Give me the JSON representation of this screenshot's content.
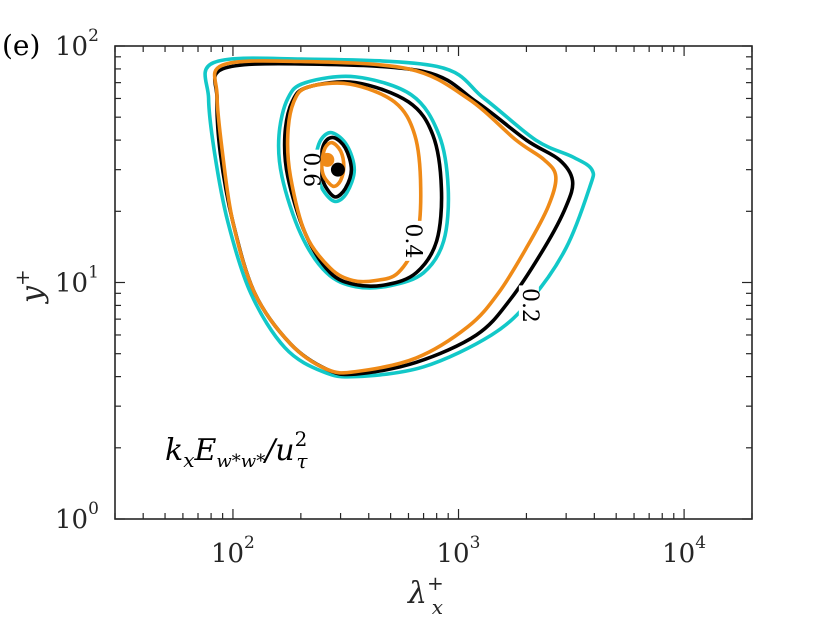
{
  "chart_data": {
    "type": "contour",
    "panel_label": "(e)",
    "xlabel": "λ",
    "xlabel_sup": "+",
    "xlabel_sub": "x",
    "ylabel": "y",
    "ylabel_sup": "+",
    "xscale": "log",
    "yscale": "log",
    "xlim": [
      30,
      20000
    ],
    "ylim": [
      1,
      100
    ],
    "x_ticks": [
      {
        "base": "10",
        "exp": "2",
        "value": 100
      },
      {
        "base": "10",
        "exp": "3",
        "value": 1000
      },
      {
        "base": "10",
        "exp": "4",
        "value": 10000
      }
    ],
    "y_ticks": [
      {
        "base": "10",
        "exp": "0",
        "value": 1
      },
      {
        "base": "10",
        "exp": "1",
        "value": 10
      },
      {
        "base": "10",
        "exp": "2",
        "value": 100
      }
    ],
    "annotation": {
      "text_main": "k",
      "sub1": "x",
      "text_E": "E",
      "sub2": "w*w*",
      "text_u": "/u",
      "sup3": "2",
      "sub3": "τ"
    },
    "contour_labels": [
      {
        "text": "0.6",
        "x": 220,
        "y": 30
      },
      {
        "text": "0.4",
        "x": 620,
        "y": 15
      },
      {
        "text": "0.2",
        "x": 2050,
        "y": 8
      }
    ],
    "series": [
      {
        "color": "#12c8c8",
        "levels": [
          {
            "level": 0.2,
            "points": [
              [
                78,
                60
              ],
              [
                82,
                85
              ],
              [
                200,
                88
              ],
              [
                800,
                82
              ],
              [
                1300,
                60
              ],
              [
                2200,
                40
              ],
              [
                3200,
                34
              ],
              [
                3900,
                30
              ],
              [
                3800,
                25
              ],
              [
                3000,
                14
              ],
              [
                2100,
                8.5
              ],
              [
                1400,
                6
              ],
              [
                700,
                4.4
              ],
              [
                350,
                4.0
              ],
              [
                250,
                4.2
              ],
              [
                170,
                5.3
              ],
              [
                120,
                9
              ],
              [
                95,
                18
              ],
              [
                83,
                35
              ],
              [
                78,
                60
              ]
            ]
          },
          {
            "level": 0.4,
            "points": [
              [
                160,
                42
              ],
              [
                175,
                60
              ],
              [
                210,
                70
              ],
              [
                350,
                74
              ],
              [
                620,
                62
              ],
              [
                820,
                42
              ],
              [
                900,
                25
              ],
              [
                860,
                15
              ],
              [
                700,
                11
              ],
              [
                500,
                9.7
              ],
              [
                350,
                9.6
              ],
              [
                260,
                11
              ],
              [
                200,
                16
              ],
              [
                165,
                28
              ],
              [
                160,
                42
              ]
            ]
          },
          {
            "level": 0.6,
            "points": [
              [
                232,
                33
              ],
              [
                245,
                40
              ],
              [
                275,
                43
              ],
              [
                320,
                38
              ],
              [
                345,
                30
              ],
              [
                320,
                24
              ],
              [
                285,
                22
              ],
              [
                255,
                24
              ],
              [
                237,
                28
              ],
              [
                232,
                33
              ]
            ]
          }
        ]
      },
      {
        "color": "#000000",
        "levels": [
          {
            "level": 0.2,
            "points": [
              [
                85,
                60
              ],
              [
                90,
                80
              ],
              [
                200,
                84
              ],
              [
                700,
                78
              ],
              [
                1200,
                58
              ],
              [
                2000,
                40
              ],
              [
                2800,
                33
              ],
              [
                3200,
                27
              ],
              [
                3000,
                21
              ],
              [
                2400,
                14
              ],
              [
                1700,
                8.5
              ],
              [
                1200,
                6
              ],
              [
                650,
                4.6
              ],
              [
                350,
                4.1
              ],
              [
                260,
                4.3
              ],
              [
                180,
                5.5
              ],
              [
                125,
                9
              ],
              [
                100,
                18
              ],
              [
                88,
                35
              ],
              [
                85,
                60
              ]
            ]
          },
          {
            "level": 0.4,
            "points": [
              [
                170,
                42
              ],
              [
                183,
                58
              ],
              [
                215,
                67
              ],
              [
                350,
                70
              ],
              [
                600,
                58
              ],
              [
                770,
                42
              ],
              [
                840,
                25
              ],
              [
                800,
                15
              ],
              [
                650,
                11
              ],
              [
                480,
                9.8
              ],
              [
                350,
                9.8
              ],
              [
                270,
                11
              ],
              [
                210,
                16
              ],
              [
                175,
                28
              ],
              [
                170,
                42
              ]
            ]
          },
          {
            "level": 0.6,
            "points": [
              [
                245,
                33
              ],
              [
                255,
                39
              ],
              [
                280,
                41
              ],
              [
                315,
                37
              ],
              [
                335,
                30
              ],
              [
                315,
                25
              ],
              [
                285,
                23
              ],
              [
                260,
                25
              ],
              [
                248,
                28
              ],
              [
                245,
                33
              ]
            ]
          }
        ]
      },
      {
        "color": "#ef8a17",
        "levels": [
          {
            "level": 0.2,
            "points": [
              [
                85,
                62
              ],
              [
                90,
                83
              ],
              [
                200,
                86
              ],
              [
                600,
                80
              ],
              [
                1100,
                60
              ],
              [
                1800,
                40
              ],
              [
                2400,
                33
              ],
              [
                2700,
                28
              ],
              [
                2500,
                21
              ],
              [
                2000,
                14
              ],
              [
                1500,
                9
              ],
              [
                1100,
                6.5
              ],
              [
                650,
                4.8
              ],
              [
                350,
                4.2
              ],
              [
                260,
                4.3
              ],
              [
                180,
                5.5
              ],
              [
                125,
                9
              ],
              [
                100,
                18
              ],
              [
                90,
                35
              ],
              [
                85,
                62
              ]
            ]
          },
          {
            "level": 0.4,
            "points": [
              [
                175,
                42
              ],
              [
                186,
                58
              ],
              [
                215,
                67
              ],
              [
                330,
                69
              ],
              [
                520,
                58
              ],
              [
                640,
                42
              ],
              [
                680,
                25
              ],
              [
                650,
                15
              ],
              [
                540,
                11
              ],
              [
                430,
                10.2
              ],
              [
                340,
                10.2
              ],
              [
                270,
                11.5
              ],
              [
                210,
                16
              ],
              [
                180,
                28
              ],
              [
                175,
                42
              ]
            ]
          },
          {
            "level": 0.6,
            "points": [
              [
                248,
                32
              ],
              [
                256,
                37
              ],
              [
                275,
                39
              ],
              [
                300,
                36
              ],
              [
                310,
                31
              ],
              [
                300,
                27
              ],
              [
                280,
                25.5
              ],
              [
                260,
                27
              ],
              [
                250,
                29
              ],
              [
                248,
                32
              ]
            ]
          }
        ]
      }
    ],
    "markers": [
      {
        "color": "#ef8a17",
        "x": 262,
        "y": 33
      },
      {
        "color": "#000000",
        "x": 292,
        "y": 30
      }
    ]
  }
}
